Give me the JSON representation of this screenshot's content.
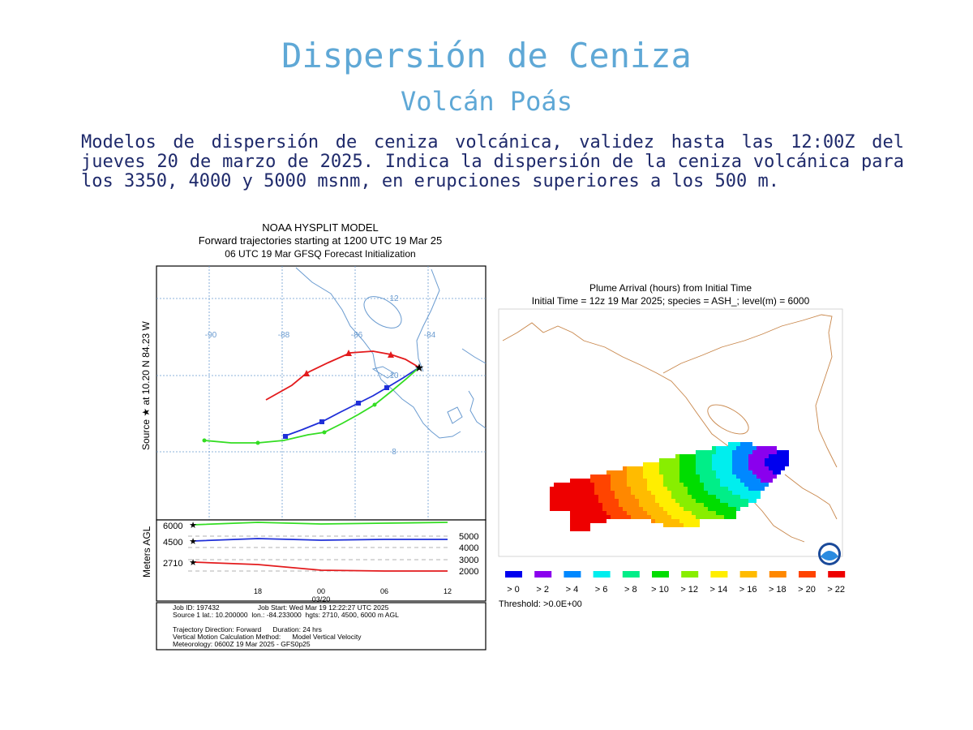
{
  "header": {
    "title": "Dispersión de Ceniza",
    "subtitle": "Volcán Poás",
    "description": "Modelos de dispersión de ceniza volcánica, validez hasta las 12:00Z del jueves 20 de marzo de 2025. Indica la dispersión de la ceniza volcánica para los 3350, 4000 y 5000 msnm, en erupciones superiores a los 500 m."
  },
  "trajectory": {
    "title_lines": [
      "NOAA HYSPLIT MODEL",
      "Forward trajectories starting at 1200 UTC 19 Mar 25",
      "06 UTC 19 Mar    GFSQ  Forecast Initialization"
    ],
    "y_label": "Source ★  at    10.20 N   84.23 W",
    "lon_labels": [
      "-90",
      "-88",
      "-86",
      "-84"
    ],
    "lat_labels": [
      "12",
      "10",
      "8"
    ],
    "profile_y_label": "Meters AGL",
    "start_heights": [
      "6000",
      "4500",
      "2710"
    ],
    "right_axis": [
      "5000",
      "4000",
      "3000",
      "2000"
    ],
    "time_ticks": [
      "18",
      "00",
      "06",
      "12"
    ],
    "date_label": "03/20",
    "job_lines": [
      "Job ID: 197432                    Job Start: Wed Mar 19 12:22:27 UTC 2025",
      "Source 1 lat.: 10.200000  lon.: -84.233000  hgts: 2710, 4500, 6000 m AGL",
      "Trajectory Direction: Forward      Duration: 24 hrs",
      "Vertical Motion Calculation Method:      Model Vertical Velocity",
      "Meteorology: 0600Z 19 Mar 2025 - GFS0p25"
    ],
    "colors": {
      "red": "#e31a1c",
      "blue": "#1f2fd8",
      "green": "#33dd22"
    }
  },
  "plume": {
    "title_lines": [
      "Plume Arrival (hours) from Initial Time",
      "Initial Time = 12z 19 Mar 2025;  species = ASH_;  level(m) =  6000"
    ],
    "legend_labels": [
      "> 0",
      "> 2",
      "> 4",
      "> 6",
      "> 8",
      "> 10",
      "> 12",
      "> 14",
      "> 16",
      "> 18",
      "> 20",
      "> 22"
    ],
    "legend_colors": [
      "#0000ee",
      "#8a00ee",
      "#0088ff",
      "#00eeee",
      "#00ee88",
      "#00dd00",
      "#88ee00",
      "#ffee00",
      "#ffbb00",
      "#ff8800",
      "#ff4400",
      "#ee0000"
    ],
    "threshold": "Threshold: >0.0E+00",
    "logo": "noaa-logo"
  }
}
